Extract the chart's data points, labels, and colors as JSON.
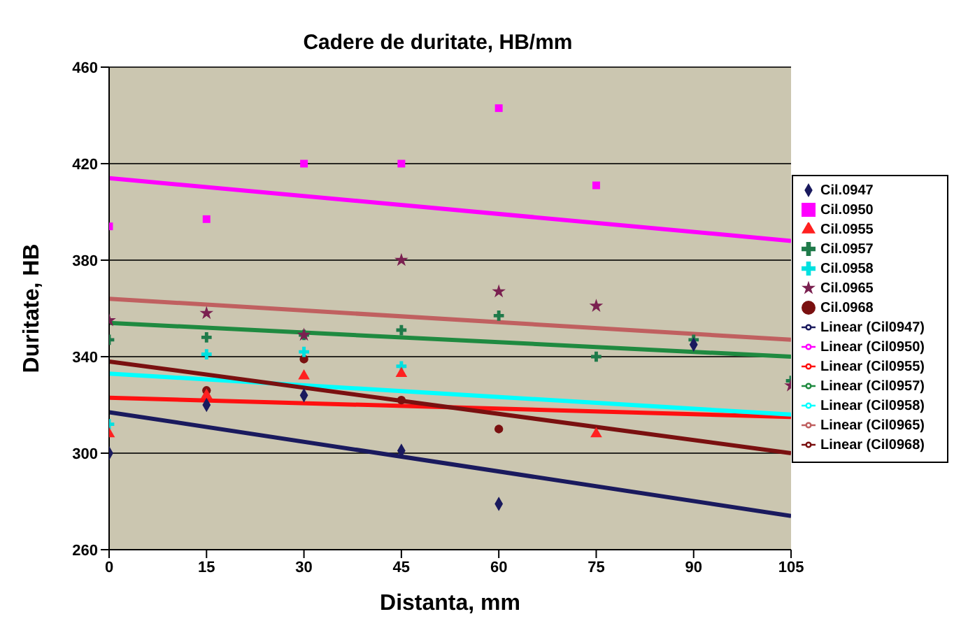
{
  "chart_data": {
    "type": "scatter",
    "title": "Cadere de duritate, HB/mm",
    "xlabel": "Distanta, mm",
    "ylabel": "Duritate, HB",
    "xlim": [
      0,
      105
    ],
    "xticks": [
      0,
      15,
      30,
      45,
      60,
      75,
      90,
      105
    ],
    "ylim": [
      260,
      460
    ],
    "yticks": [
      260,
      300,
      340,
      380,
      420,
      460
    ],
    "grid": "y",
    "legend": "right",
    "series": [
      {
        "name": "Cil.0947",
        "color": "#1a1a5e",
        "marker": "diamond",
        "x": [
          0,
          15,
          30,
          45,
          60,
          90
        ],
        "values": [
          300,
          320,
          324,
          301,
          279,
          345
        ]
      },
      {
        "name": "Cil.0950",
        "color": "#ff00ff",
        "marker": "square",
        "x": [
          0,
          15,
          30,
          45,
          60,
          75
        ],
        "values": [
          394,
          397,
          420,
          420,
          443,
          411
        ]
      },
      {
        "name": "Cil.0955",
        "color": "#ff2020",
        "marker": "triangle",
        "x": [
          0,
          15,
          30,
          45,
          75
        ],
        "values": [
          308,
          324,
          332,
          333,
          308
        ]
      },
      {
        "name": "Cil.0958",
        "color": "#00e0e0",
        "marker": "cross",
        "x": [
          0,
          15,
          30,
          45
        ],
        "values": [
          312,
          341,
          342,
          336
        ]
      },
      {
        "name": "Cil.0965",
        "color": "#7a2050",
        "marker": "star",
        "x": [
          0,
          15,
          30,
          45,
          60,
          75,
          105
        ],
        "values": [
          355,
          358,
          349,
          380,
          367,
          361,
          328
        ]
      },
      {
        "name": "Cil.0968",
        "color": "#7a1010",
        "marker": "circle",
        "x": [
          15,
          30,
          45,
          60
        ],
        "values": [
          326,
          339,
          322,
          310
        ]
      },
      {
        "name": "Cil.0957",
        "color": "#1f7a4a",
        "marker": "cross",
        "x": [
          0,
          15,
          30,
          45,
          60,
          75,
          90,
          105
        ],
        "values": [
          347,
          348,
          349,
          351,
          357,
          340,
          347,
          330
        ]
      },
      {
        "name": "Linear (Cil0950)",
        "type": "line",
        "color": "#ff00ff",
        "marker": "none",
        "x": [
          0,
          105
        ],
        "values": [
          414,
          388
        ]
      },
      {
        "name": "Linear (Cil0965)",
        "type": "line",
        "color": "#c06060",
        "marker": "none",
        "x": [
          0,
          105
        ],
        "values": [
          364,
          347
        ]
      },
      {
        "name": "Linear (Cil0968)",
        "type": "line",
        "color": "#7a1010",
        "marker": "none",
        "x": [
          0,
          105
        ],
        "values": [
          338,
          300
        ]
      },
      {
        "name": "Linear (Cil0957)",
        "type": "line",
        "color": "#1f8a40",
        "marker": "none",
        "x": [
          0,
          105
        ],
        "values": [
          354,
          340
        ]
      },
      {
        "name": "Linear (Cil0958)",
        "type": "line",
        "color": "#00ffff",
        "marker": "none",
        "x": [
          0,
          105
        ],
        "values": [
          333,
          316
        ]
      },
      {
        "name": "Linear (Cil0955)",
        "type": "line",
        "color": "#ff1010",
        "marker": "none",
        "x": [
          0,
          105
        ],
        "values": [
          323,
          315
        ]
      },
      {
        "name": "Linear (Cil0947)",
        "type": "line",
        "color": "#1a1a5e",
        "marker": "none",
        "x": [
          0,
          105
        ],
        "values": [
          317,
          274
        ]
      }
    ]
  }
}
